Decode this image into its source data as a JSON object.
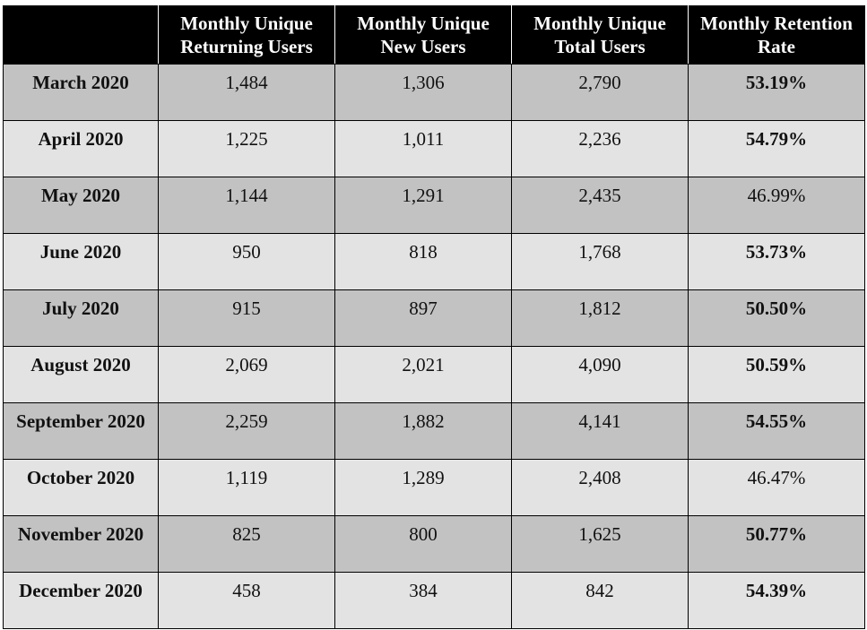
{
  "table": {
    "headers": [
      "",
      "Monthly Unique Returning Users",
      "Monthly Unique New Users",
      "Monthly Unique Total Users",
      "Monthly Retention Rate"
    ],
    "header_lines": [
      [
        "",
        ""
      ],
      [
        "Monthly Unique",
        "Returning Users"
      ],
      [
        "Monthly Unique",
        "New Users"
      ],
      [
        "Monthly Unique",
        "Total Users"
      ],
      [
        "Monthly Retention",
        "Rate"
      ]
    ],
    "rows": [
      {
        "month": "March 2020",
        "returning": "1,484",
        "new": "1,306",
        "total": "2,790",
        "rate": "53.19%",
        "rate_bold": true
      },
      {
        "month": "April 2020",
        "returning": "1,225",
        "new": "1,011",
        "total": "2,236",
        "rate": "54.79%",
        "rate_bold": true
      },
      {
        "month": "May 2020",
        "returning": "1,144",
        "new": "1,291",
        "total": "2,435",
        "rate": "46.99%",
        "rate_bold": false
      },
      {
        "month": "June 2020",
        "returning": "950",
        "new": "818",
        "total": "1,768",
        "rate": "53.73%",
        "rate_bold": true
      },
      {
        "month": "July 2020",
        "returning": "915",
        "new": "897",
        "total": "1,812",
        "rate": "50.50%",
        "rate_bold": true
      },
      {
        "month": "August 2020",
        "returning": "2,069",
        "new": "2,021",
        "total": "4,090",
        "rate": "50.59%",
        "rate_bold": true
      },
      {
        "month": "September 2020",
        "returning": "2,259",
        "new": "1,882",
        "total": "4,141",
        "rate": "54.55%",
        "rate_bold": true
      },
      {
        "month": "October 2020",
        "returning": "1,119",
        "new": "1,289",
        "total": "2,408",
        "rate": "46.47%",
        "rate_bold": false
      },
      {
        "month": "November 2020",
        "returning": "825",
        "new": "800",
        "total": "1,625",
        "rate": "50.77%",
        "rate_bold": true
      },
      {
        "month": "December 2020",
        "returning": "458",
        "new": "384",
        "total": "842",
        "rate": "54.39%",
        "rate_bold": true
      }
    ]
  },
  "colors": {
    "header_bg": "#000000",
    "header_text": "#ffffff",
    "row_odd_bg": "#c2c2c2",
    "row_even_bg": "#e3e3e3"
  }
}
